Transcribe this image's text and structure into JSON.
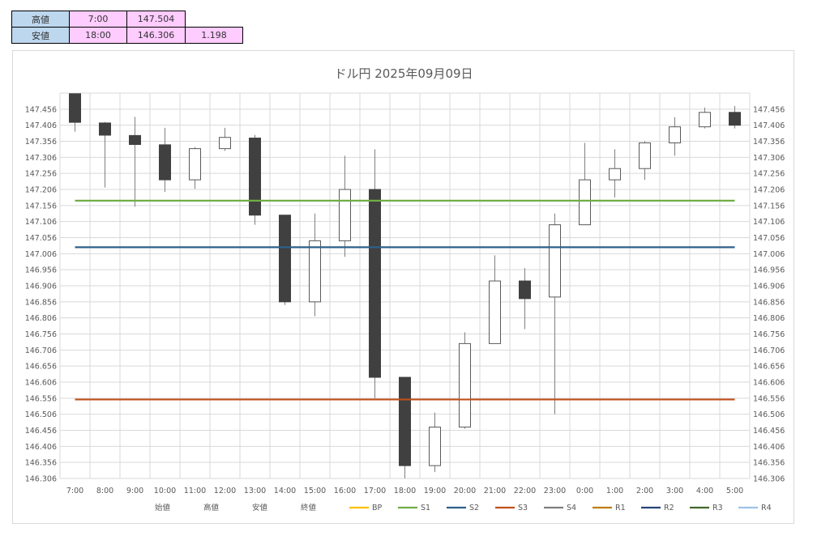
{
  "summary": {
    "high": {
      "label": "高値",
      "time": "7:00",
      "price": "147.504"
    },
    "low": {
      "label": "安値",
      "time": "18:00",
      "price": "146.306",
      "range": "1.198"
    }
  },
  "chart_data": {
    "type": "candlestick",
    "title": "ドル円  2025年09月09日",
    "ylim": [
      146.306,
      147.506
    ],
    "y_ticks": [
      "147.456",
      "147.406",
      "147.356",
      "147.306",
      "147.256",
      "147.206",
      "147.156",
      "147.106",
      "147.056",
      "147.006",
      "146.956",
      "146.906",
      "146.856",
      "146.806",
      "146.756",
      "146.706",
      "146.656",
      "146.606",
      "146.556",
      "146.506",
      "146.456",
      "146.406",
      "146.356",
      "146.306"
    ],
    "y_tick_values": [
      147.456,
      147.406,
      147.356,
      147.306,
      147.256,
      147.206,
      147.156,
      147.106,
      147.056,
      147.006,
      146.956,
      146.906,
      146.856,
      146.806,
      146.756,
      146.706,
      146.656,
      146.606,
      146.556,
      146.506,
      146.456,
      146.406,
      146.356,
      146.306
    ],
    "categories": [
      "7:00",
      "8:00",
      "9:00",
      "10:00",
      "11:00",
      "12:00",
      "13:00",
      "14:00",
      "15:00",
      "16:00",
      "17:00",
      "18:00",
      "19:00",
      "20:00",
      "21:00",
      "22:00",
      "23:00",
      "0:00",
      "1:00",
      "2:00",
      "3:00",
      "4:00",
      "5:00"
    ],
    "candles": [
      {
        "open": 147.504,
        "high": 147.504,
        "low": 147.386,
        "close": 147.415
      },
      {
        "open": 147.413,
        "high": 147.416,
        "low": 147.212,
        "close": 147.375
      },
      {
        "open": 147.374,
        "high": 147.432,
        "low": 147.152,
        "close": 147.346
      },
      {
        "open": 147.345,
        "high": 147.398,
        "low": 147.198,
        "close": 147.236
      },
      {
        "open": 147.236,
        "high": 147.338,
        "low": 147.208,
        "close": 147.333
      },
      {
        "open": 147.333,
        "high": 147.398,
        "low": 147.326,
        "close": 147.368
      },
      {
        "open": 147.366,
        "high": 147.376,
        "low": 147.096,
        "close": 147.126
      },
      {
        "open": 147.126,
        "high": 147.126,
        "low": 146.846,
        "close": 146.856
      },
      {
        "open": 146.856,
        "high": 147.131,
        "low": 146.811,
        "close": 147.046
      },
      {
        "open": 147.046,
        "high": 147.311,
        "low": 146.996,
        "close": 147.206
      },
      {
        "open": 147.206,
        "high": 147.331,
        "low": 146.556,
        "close": 146.621
      },
      {
        "open": 146.621,
        "high": 146.621,
        "low": 146.306,
        "close": 146.346
      },
      {
        "open": 146.346,
        "high": 146.511,
        "low": 146.326,
        "close": 146.466
      },
      {
        "open": 146.466,
        "high": 146.761,
        "low": 146.461,
        "close": 146.726
      },
      {
        "open": 146.726,
        "high": 147.001,
        "low": 146.726,
        "close": 146.921
      },
      {
        "open": 146.921,
        "high": 146.961,
        "low": 146.771,
        "close": 146.866
      },
      {
        "open": 146.871,
        "high": 147.131,
        "low": 146.506,
        "close": 147.096
      },
      {
        "open": 147.096,
        "high": 147.351,
        "low": 147.096,
        "close": 147.236
      },
      {
        "open": 147.236,
        "high": 147.331,
        "low": 147.181,
        "close": 147.271
      },
      {
        "open": 147.271,
        "high": 147.356,
        "low": 147.236,
        "close": 147.351
      },
      {
        "open": 147.351,
        "high": 147.431,
        "low": 147.311,
        "close": 147.401
      },
      {
        "open": 147.401,
        "high": 147.461,
        "low": 147.396,
        "close": 147.446
      },
      {
        "open": 147.446,
        "high": 147.466,
        "low": 147.396,
        "close": 147.406
      }
    ],
    "lines": [
      {
        "name": "S1",
        "value": 147.171,
        "color": "#70ad47"
      },
      {
        "name": "S2",
        "value": 147.026,
        "color": "#2e5f8a"
      },
      {
        "name": "S3",
        "value": 146.552,
        "color": "#c0501a"
      }
    ],
    "legend": [
      {
        "name": "始値",
        "marker": "none",
        "color": ""
      },
      {
        "name": "高値",
        "marker": "none",
        "color": ""
      },
      {
        "name": "安値",
        "marker": "none",
        "color": ""
      },
      {
        "name": "終値",
        "marker": "none",
        "color": ""
      },
      {
        "name": "BP",
        "marker": "line",
        "color": "#ffc000"
      },
      {
        "name": "S1",
        "marker": "line",
        "color": "#70ad47"
      },
      {
        "name": "S2",
        "marker": "line",
        "color": "#2e5f8a"
      },
      {
        "name": "S3",
        "marker": "line",
        "color": "#c0501a"
      },
      {
        "name": "S4",
        "marker": "line",
        "color": "#7f7f7f"
      },
      {
        "name": "R1",
        "marker": "line",
        "color": "#c07d10"
      },
      {
        "name": "R2",
        "marker": "line",
        "color": "#264478"
      },
      {
        "name": "R3",
        "marker": "line",
        "color": "#43682b"
      },
      {
        "name": "R4",
        "marker": "line",
        "color": "#9dc3e6"
      }
    ],
    "colors": {
      "bear_body": "#404040",
      "bull_body": "#ffffff",
      "wick": "#808080",
      "grid": "#d9d9d9"
    },
    "grid": true,
    "legend_position": "bottom"
  }
}
